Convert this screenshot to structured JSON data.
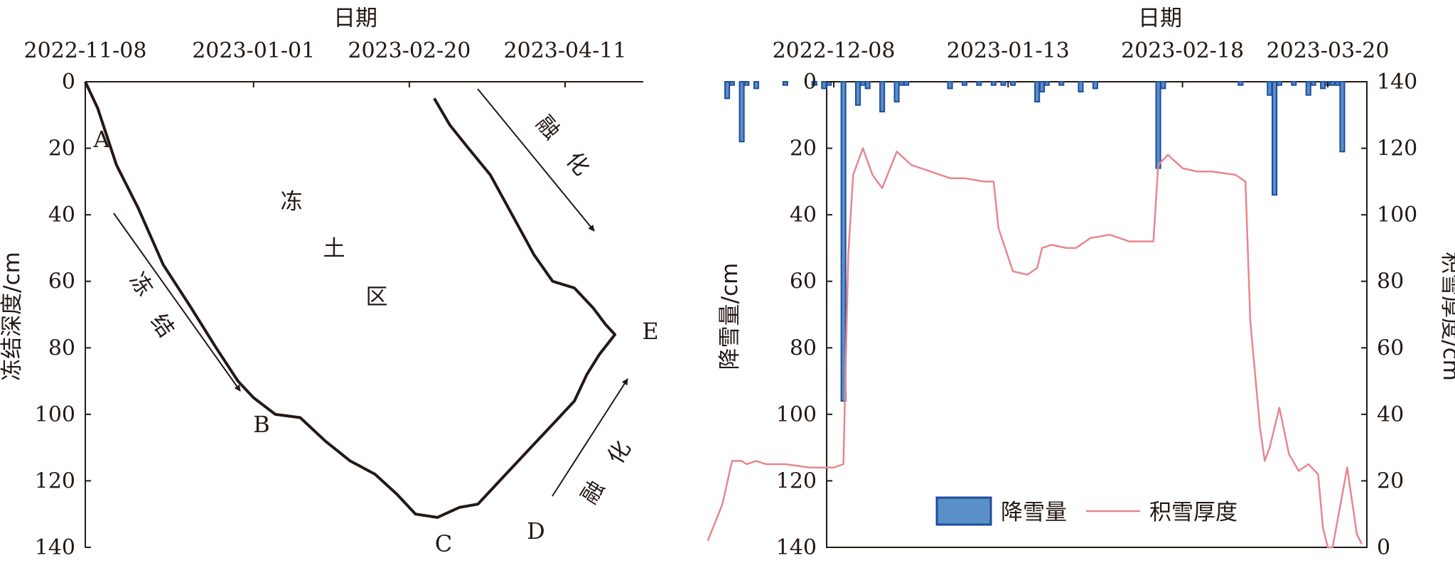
{
  "chart_data": [
    {
      "type": "line",
      "panel": "left",
      "title": "",
      "xlabel": "日期",
      "ylabel": "冻结深度/cm",
      "x_ticks": [
        "2022-11-08",
        "2023-01-01",
        "2023-02-20",
        "2023-04-11"
      ],
      "y_ticks": [
        "0",
        "20",
        "40",
        "60",
        "80",
        "100",
        "120",
        "140"
      ],
      "ylim": [
        0,
        140
      ],
      "y_inverted": true,
      "series": [
        {
          "name": "",
          "x": [
            "2022-11-08",
            "2022-11-12",
            "2022-11-18",
            "2022-11-25",
            "2022-12-03",
            "2022-12-12",
            "2022-12-20",
            "2022-12-27",
            "2023-01-01",
            "2023-01-08",
            "2023-01-16",
            "2023-01-24",
            "2023-02-01",
            "2023-02-09",
            "2023-02-16",
            "2023-02-22",
            "2023-03-01",
            "2023-03-08",
            "2023-03-14",
            "2023-03-22",
            "2023-03-30",
            "2023-04-08",
            "2023-04-14",
            "2023-04-18",
            "2023-04-22",
            "2023-04-27",
            "2023-04-24",
            "2023-04-20",
            "2023-04-14",
            "2023-04-07",
            "2023-04-01",
            "2023-03-25",
            "2023-03-18",
            "2023-03-11",
            "2023-03-05",
            "2023-02-28"
          ],
          "y": [
            0,
            8,
            25,
            38,
            55,
            68,
            80,
            90,
            95,
            100,
            101,
            108,
            114,
            118,
            124,
            130,
            131,
            128,
            127,
            119,
            111,
            102,
            96,
            88,
            82,
            76,
            73,
            68,
            62,
            60,
            52,
            40,
            28,
            20,
            13,
            5
          ]
        }
      ],
      "point_labels": [
        "A",
        "B",
        "C",
        "D",
        "E"
      ],
      "region_label": [
        "冻",
        "土",
        "区"
      ],
      "arrow_labels": {
        "freeze": [
          "冻",
          "结"
        ],
        "melt_top": [
          "融",
          "化"
        ],
        "melt_bottom": [
          "融",
          "化"
        ]
      },
      "grid": false
    },
    {
      "type": "bar+line",
      "panel": "right",
      "title": "",
      "xlabel": "日期",
      "ylabel_left": "降雪量/cm",
      "ylabel_right": "积雪厚度/cm",
      "x_ticks": [
        "2022-12-08",
        "2023-01-13",
        "2023-02-18",
        "2023-03-20"
      ],
      "y_left_ticks": [
        "0",
        "20",
        "40",
        "60",
        "80",
        "100",
        "120",
        "140"
      ],
      "y_right_ticks": [
        "140",
        "120",
        "100",
        "80",
        "60",
        "40",
        "20",
        "0"
      ],
      "ylim_left": [
        0,
        140
      ],
      "ylim_right": [
        0,
        140
      ],
      "y_left_inverted": true,
      "legend_position": "bottom",
      "series": [
        {
          "name": "降雪量",
          "kind": "bar",
          "color": "#1f4e9c",
          "x": [
            "2022-11-16",
            "2022-11-17",
            "2022-11-19",
            "2022-11-20",
            "2022-11-22",
            "2022-11-28",
            "2022-12-04",
            "2022-12-06",
            "2022-12-07",
            "2022-12-10",
            "2022-12-13",
            "2022-12-14",
            "2022-12-15",
            "2022-12-18",
            "2022-12-21",
            "2022-12-22",
            "2022-12-23",
            "2023-01-01",
            "2023-01-04",
            "2023-01-07",
            "2023-01-10",
            "2023-01-12",
            "2023-01-14",
            "2023-01-19",
            "2023-01-20",
            "2023-01-21",
            "2023-01-24",
            "2023-01-28",
            "2023-01-31",
            "2023-02-13",
            "2023-02-14",
            "2023-03-02",
            "2023-03-08",
            "2023-03-09",
            "2023-03-10",
            "2023-03-13",
            "2023-03-16",
            "2023-03-17",
            "2023-03-19",
            "2023-03-20",
            "2023-03-21",
            "2023-03-22",
            "2023-03-23"
          ],
          "values": [
            5,
            1,
            18,
            1,
            2,
            1,
            1,
            2,
            1,
            96,
            7,
            1,
            2,
            9,
            6,
            1,
            1,
            2,
            1,
            1,
            1,
            1,
            1,
            6,
            3,
            1,
            1,
            3,
            2,
            26,
            2,
            1,
            4,
            34,
            1,
            1,
            4,
            1,
            2,
            1,
            1,
            1,
            21
          ]
        },
        {
          "name": "积雪厚度",
          "kind": "line",
          "color": "#e8868e",
          "x": [
            "2022-11-12",
            "2022-11-15",
            "2022-11-17",
            "2022-11-19",
            "2022-11-20",
            "2022-11-22",
            "2022-11-24",
            "2022-11-28",
            "2022-12-03",
            "2022-12-06",
            "2022-12-08",
            "2022-12-10",
            "2022-12-11",
            "2022-12-12",
            "2022-12-14",
            "2022-12-16",
            "2022-12-18",
            "2022-12-21",
            "2022-12-24",
            "2022-12-28",
            "2023-01-01",
            "2023-01-04",
            "2023-01-08",
            "2023-01-10",
            "2023-01-11",
            "2023-01-14",
            "2023-01-17",
            "2023-01-19",
            "2023-01-20",
            "2023-01-22",
            "2023-01-25",
            "2023-01-27",
            "2023-01-30",
            "2023-02-03",
            "2023-02-07",
            "2023-02-11",
            "2023-02-12",
            "2023-02-13",
            "2023-02-15",
            "2023-02-18",
            "2023-02-21",
            "2023-02-24",
            "2023-03-01",
            "2023-03-03",
            "2023-03-04",
            "2023-03-06",
            "2023-03-07",
            "2023-03-08",
            "2023-03-10",
            "2023-03-12",
            "2023-03-14",
            "2023-03-16",
            "2023-03-18",
            "2023-03-19",
            "2023-03-20",
            "2023-03-21",
            "2023-03-24",
            "2023-03-26",
            "2023-03-27"
          ],
          "values": [
            2,
            13,
            26,
            26,
            25,
            26,
            25,
            25,
            24,
            24,
            24,
            25,
            88,
            112,
            120,
            112,
            108,
            119,
            115,
            113,
            111,
            111,
            110,
            110,
            96,
            83,
            82,
            84,
            90,
            91,
            90,
            90,
            93,
            94,
            92,
            92,
            92,
            115,
            118,
            114,
            113,
            113,
            112,
            110,
            68,
            36,
            26,
            30,
            42,
            28,
            23,
            25,
            22,
            6,
            0,
            0,
            24,
            4,
            1
          ]
        }
      ],
      "grid": false
    }
  ]
}
